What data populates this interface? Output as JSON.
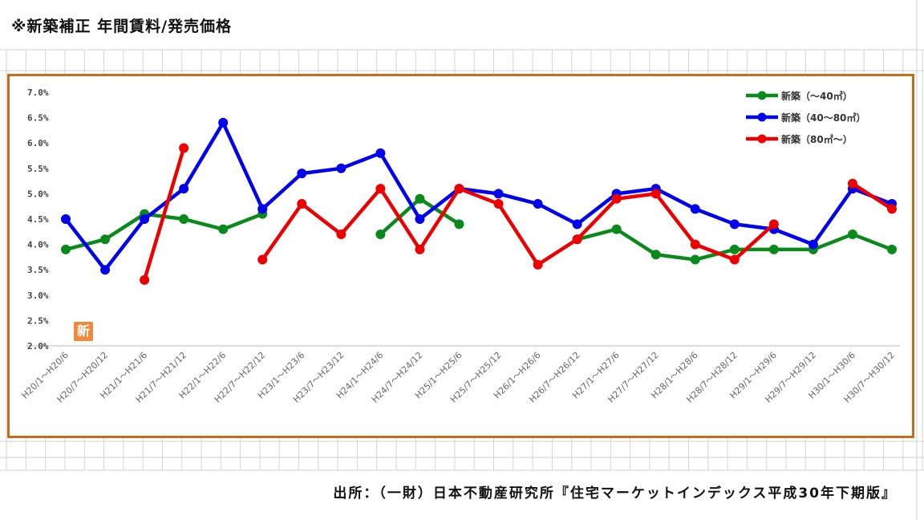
{
  "header": {
    "title": "※新築補正 年間賃料/発売価格"
  },
  "footer": {
    "source": "出所：（一財）日本不動産研究所『住宅マーケットインデックス平成30年下期版』"
  },
  "colors": {
    "frame": "#c96b1a",
    "green": "#0a8a1a",
    "blue": "#0000ee",
    "red": "#ee0000"
  },
  "chart_data": {
    "type": "line",
    "title": "",
    "xlabel": "",
    "ylabel": "",
    "ylim": [
      2.0,
      7.0
    ],
    "y_ticks": [
      "2.0%",
      "2.5%",
      "3.0%",
      "3.5%",
      "4.0%",
      "4.5%",
      "5.0%",
      "5.5%",
      "6.0%",
      "6.5%",
      "7.0%"
    ],
    "grid": false,
    "legend_position": "top-right",
    "badge_text": "新",
    "categories": [
      "H20/1～H20/6",
      "H20/7～H20/12",
      "H21/1～H21/6",
      "H21/7～H21/12",
      "H22/1～H22/6",
      "H22/7～H22/12",
      "H23/1～H23/6",
      "H23/7～H23/12",
      "H24/1～H24/6",
      "H24/7～H24/12",
      "H25/1～H25/6",
      "H25/7～H25/12",
      "H26/1～H26/6",
      "H26/7～H26/12",
      "H27/1～H27/6",
      "H27/7～H27/12",
      "H28/1～H28/6",
      "H28/7～H28/12",
      "H29/1～H29/6",
      "H29/7～H29/12",
      "H30/1～H30/6",
      "H30/7～H30/12"
    ],
    "series": [
      {
        "name": "新築（～40㎡）",
        "color": "#0a8a1a",
        "values": [
          3.9,
          4.1,
          4.6,
          4.5,
          4.3,
          4.6,
          null,
          null,
          4.2,
          4.9,
          4.4,
          null,
          null,
          4.1,
          4.3,
          3.8,
          3.7,
          3.9,
          3.9,
          3.9,
          4.2,
          3.9
        ]
      },
      {
        "name": "新築（40～80㎡）",
        "color": "#0000ee",
        "values": [
          4.5,
          3.5,
          4.5,
          5.1,
          6.4,
          4.7,
          5.4,
          5.5,
          5.8,
          4.5,
          5.1,
          5.0,
          4.8,
          4.4,
          5.0,
          5.1,
          4.7,
          4.4,
          4.3,
          4.0,
          5.1,
          4.8
        ]
      },
      {
        "name": "新築（80㎡～）",
        "color": "#ee0000",
        "values": [
          null,
          null,
          3.3,
          5.9,
          null,
          3.7,
          4.8,
          4.2,
          5.1,
          3.9,
          5.1,
          4.8,
          3.6,
          4.1,
          4.9,
          5.0,
          4.0,
          3.7,
          4.4,
          null,
          5.2,
          4.7
        ]
      }
    ]
  }
}
